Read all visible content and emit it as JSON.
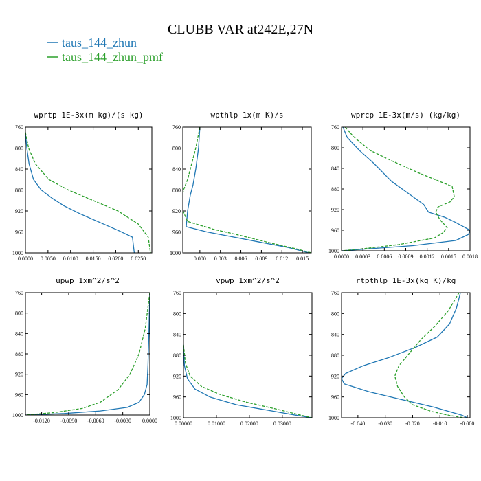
{
  "figure": {
    "title": "CLUBB VAR at242E,27N",
    "legend": [
      {
        "label": "taus_144_zhun",
        "color": "#1f77b4",
        "dash": "solid"
      },
      {
        "label": "taus_144_zhun_pmf",
        "color": "#2ca02c",
        "dash": "dashed"
      }
    ]
  },
  "chart_data": [
    {
      "type": "line",
      "title": "wprtp  1E-3x(m kg)/(s kg)",
      "xlim": [
        0,
        0.028
      ],
      "ylim": [
        760,
        1000
      ],
      "y_inverted": true,
      "xticks": [
        0,
        0.005,
        0.01,
        0.015,
        0.02,
        0.025
      ],
      "xtick_labels": [
        "0.0000",
        "0.0050",
        "0.0100",
        "0.0150",
        "0.0200",
        "0.0250"
      ],
      "yticks": [
        760,
        800,
        840,
        880,
        920,
        960,
        1000
      ],
      "series": [
        {
          "name": "taus_144_zhun",
          "x": [
            0.0,
            0.0003,
            0.0008,
            0.0018,
            0.0035,
            0.0058,
            0.0085,
            0.012,
            0.016,
            0.0205,
            0.0237,
            0.0241
          ],
          "y": [
            770,
            800,
            830,
            860,
            880,
            895,
            910,
            925,
            940,
            957,
            970,
            1000
          ]
        },
        {
          "name": "taus_144_zhun_pmf",
          "x": [
            0.0,
            0.0007,
            0.0022,
            0.0052,
            0.0095,
            0.015,
            0.0205,
            0.025,
            0.0272,
            0.0277
          ],
          "y": [
            770,
            800,
            830,
            860,
            880,
            900,
            920,
            945,
            970,
            1000
          ]
        }
      ]
    },
    {
      "type": "line",
      "title": "wpthlp  1x(m K)/s",
      "xlim": [
        -0.0025,
        0.0163
      ],
      "ylim": [
        760,
        1000
      ],
      "y_inverted": true,
      "xticks": [
        0,
        0.003,
        0.006,
        0.009,
        0.012,
        0.015
      ],
      "xtick_labels": [
        "0.000",
        "0.003",
        "0.006",
        "0.009",
        "0.012",
        "0.015"
      ],
      "yticks": [
        760,
        800,
        840,
        880,
        920,
        960,
        1000
      ],
      "series": [
        {
          "name": "taus_144_zhun",
          "x": [
            0.0,
            -0.0002,
            -0.0006,
            -0.001,
            -0.0014,
            -0.0018,
            -0.002,
            0.001,
            0.005,
            0.009,
            0.013,
            0.016
          ],
          "y": [
            760,
            800,
            840,
            870,
            890,
            920,
            950,
            960,
            970,
            980,
            990,
            1000
          ]
        },
        {
          "name": "taus_144_zhun_pmf",
          "x": [
            0.0,
            -0.0006,
            -0.0012,
            -0.0018,
            -0.0024,
            -0.0028,
            -0.0018,
            0.002,
            0.006,
            0.01,
            0.014,
            0.0163
          ],
          "y": [
            760,
            800,
            830,
            860,
            880,
            910,
            940,
            955,
            967,
            980,
            992,
            1000
          ]
        }
      ]
    },
    {
      "type": "line",
      "title": "wprcp  1E-3x(m/s) (kg/kg)",
      "xlim": [
        0,
        0.0018
      ],
      "ylim": [
        760,
        1000
      ],
      "y_inverted": true,
      "xticks": [
        0,
        0.0003,
        0.0006,
        0.0009,
        0.0012,
        0.0015,
        0.0018
      ],
      "xtick_labels": [
        "0.0000",
        "0.0003",
        "0.0006",
        "0.0009",
        "0.0012",
        "0.0015",
        "0.0018"
      ],
      "yticks": [
        760,
        800,
        840,
        880,
        920,
        960,
        1000
      ],
      "series": [
        {
          "name": "taus_144_zhun",
          "x": [
            2e-05,
            8e-05,
            0.00025,
            0.00045,
            0.0007,
            0.00095,
            0.00115,
            0.00122,
            0.00145,
            0.0016,
            0.0018,
            0.00178,
            0.0016,
            0.001,
            0.0004,
            0.0
          ],
          "y": [
            760,
            780,
            805,
            830,
            865,
            890,
            910,
            925,
            935,
            945,
            960,
            968,
            980,
            990,
            996,
            1000
          ]
        },
        {
          "name": "taus_144_zhun_pmf",
          "x": [
            5e-05,
            0.00018,
            0.0004,
            0.0007,
            0.0011,
            0.00155,
            0.00158,
            0.00152,
            0.00135,
            0.00132,
            0.00138,
            0.00148,
            0.00142,
            0.0013,
            0.0008,
            0.0003,
            0.0
          ],
          "y": [
            760,
            780,
            805,
            825,
            850,
            875,
            895,
            905,
            915,
            925,
            940,
            955,
            965,
            975,
            988,
            996,
            1000
          ]
        }
      ]
    },
    {
      "type": "line",
      "title": "upwp  1xm^2/s^2",
      "xlim": [
        -0.0138,
        0.0
      ],
      "ylim": [
        760,
        1000
      ],
      "y_inverted": true,
      "xticks": [
        -0.012,
        -0.009,
        -0.006,
        -0.003,
        0.0
      ],
      "xtick_labels": [
        "-0.0120",
        "-0.0090",
        "-0.0060",
        "-0.0030",
        "0.0000"
      ],
      "yticks": [
        760,
        800,
        840,
        880,
        920,
        960,
        1000
      ],
      "series": [
        {
          "name": "taus_144_zhun",
          "x": [
            0.0,
            -0.0001,
            -0.0002,
            -0.0003,
            -0.0006,
            -0.0012,
            -0.0025,
            -0.0055,
            -0.0095,
            -0.0138
          ],
          "y": [
            760,
            840,
            900,
            940,
            960,
            975,
            985,
            992,
            997,
            1000
          ]
        },
        {
          "name": "taus_144_zhun_pmf",
          "x": [
            0.0,
            -0.0005,
            -0.0012,
            -0.0022,
            -0.0035,
            -0.0055,
            -0.0075,
            -0.0105,
            -0.0138
          ],
          "y": [
            760,
            830,
            880,
            920,
            950,
            975,
            987,
            995,
            1000
          ]
        }
      ]
    },
    {
      "type": "line",
      "title": "vpwp  1xm^2/s^2",
      "xlim": [
        0,
        0.039
      ],
      "ylim": [
        760,
        1000
      ],
      "y_inverted": true,
      "xticks": [
        0,
        0.01,
        0.02,
        0.03
      ],
      "xtick_labels": [
        "0.00000",
        "0.01000",
        "0.02000",
        "0.03000"
      ],
      "yticks": [
        760,
        800,
        840,
        880,
        920,
        960,
        1000
      ],
      "series": [
        {
          "name": "taus_144_zhun",
          "x": [
            0.0,
            0.0003,
            0.0012,
            0.0035,
            0.008,
            0.016,
            0.026,
            0.034,
            0.039
          ],
          "y": [
            860,
            900,
            925,
            945,
            960,
            975,
            986,
            995,
            1000
          ]
        },
        {
          "name": "taus_144_zhun_pmf",
          "x": [
            0.0,
            0.0006,
            0.002,
            0.0055,
            0.011,
            0.019,
            0.028,
            0.035,
            0.039
          ],
          "y": [
            860,
            895,
            920,
            940,
            955,
            970,
            983,
            994,
            1000
          ]
        }
      ]
    },
    {
      "type": "line",
      "title": "rtpthlp  1E-3x(kg K)/kg",
      "xlim": [
        -0.046,
        0.001
      ],
      "ylim": [
        760,
        1000
      ],
      "y_inverted": true,
      "xticks": [
        -0.04,
        -0.03,
        -0.02,
        -0.01,
        0.0
      ],
      "xtick_labels": [
        "-0.040",
        "-0.030",
        "-0.020",
        "-0.010",
        "-0.000"
      ],
      "yticks": [
        760,
        800,
        840,
        880,
        920,
        960,
        1000
      ],
      "series": [
        {
          "name": "taus_144_zhun",
          "x": [
            -0.0025,
            -0.004,
            -0.0065,
            -0.011,
            -0.019,
            -0.029,
            -0.038,
            -0.0445,
            -0.046,
            -0.045,
            -0.036,
            -0.024,
            -0.012,
            -0.002,
            0.0
          ],
          "y": [
            760,
            790,
            820,
            845,
            865,
            885,
            900,
            915,
            925,
            935,
            950,
            965,
            980,
            995,
            1000
          ]
        },
        {
          "name": "taus_144_zhun_pmf",
          "x": [
            -0.003,
            -0.007,
            -0.012,
            -0.017,
            -0.021,
            -0.025,
            -0.0265,
            -0.0255,
            -0.023,
            -0.02,
            -0.013,
            -0.006,
            -0.001
          ],
          "y": [
            760,
            795,
            825,
            850,
            875,
            900,
            920,
            940,
            960,
            975,
            988,
            996,
            1000
          ]
        }
      ]
    }
  ]
}
